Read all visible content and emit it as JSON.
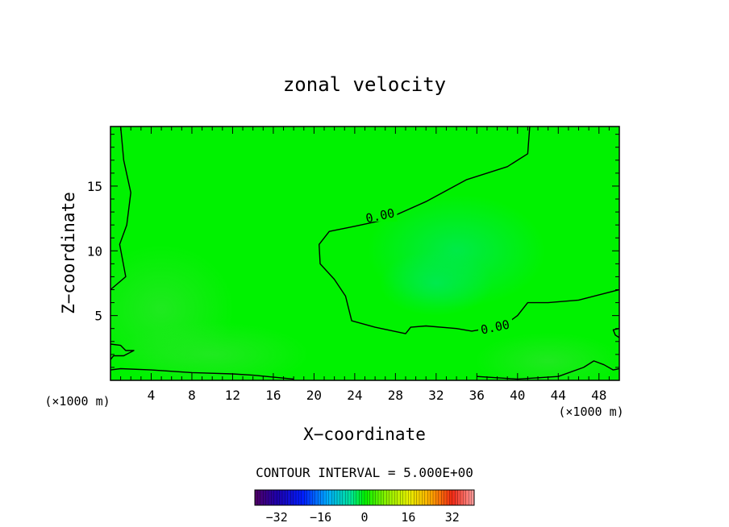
{
  "chart_data": {
    "type": "contour",
    "title": "zonal velocity",
    "xlabel": "X−coordinate",
    "ylabel": "Z−coordinate",
    "x_unit_label": "(×1000 m)",
    "y_unit_label": "(×1000 m)",
    "xlim": [
      0,
      50
    ],
    "ylim": [
      0,
      19.6
    ],
    "x_ticks": [
      4,
      8,
      12,
      16,
      20,
      24,
      28,
      32,
      36,
      40,
      44,
      48
    ],
    "x_tick_labels": [
      "4",
      "8",
      "12",
      "16",
      "20",
      "24",
      "28",
      "32",
      "36",
      "40",
      "44",
      "48"
    ],
    "y_ticks": [
      5,
      10,
      15
    ],
    "y_tick_labels": [
      "5",
      "10",
      "15"
    ],
    "contour_interval_text": "CONTOUR INTERVAL = 5.000E+00",
    "contour_labels": [
      {
        "text": "0.00",
        "x": 26.5,
        "y": 12.7
      },
      {
        "text": "0.00",
        "x": 37.8,
        "y": 4.1
      }
    ],
    "zero_contours": [
      {
        "name": "left-boundary",
        "points": [
          [
            1.0,
            19.6
          ],
          [
            1.3,
            17.0
          ],
          [
            2.0,
            14.5
          ],
          [
            1.6,
            12.0
          ],
          [
            0.9,
            10.5
          ],
          [
            1.5,
            8.0
          ],
          [
            0,
            7.0
          ]
        ]
      },
      {
        "name": "main-tongue",
        "points": [
          [
            41.2,
            19.6
          ],
          [
            41.0,
            17.5
          ],
          [
            39.0,
            16.5
          ],
          [
            35.0,
            15.5
          ],
          [
            31.0,
            13.8
          ],
          [
            27.0,
            12.4
          ],
          [
            24.0,
            11.9
          ],
          [
            21.5,
            11.5
          ],
          [
            20.5,
            10.5
          ],
          [
            20.6,
            9.0
          ],
          [
            22.0,
            7.8
          ],
          [
            23.1,
            6.5
          ],
          [
            23.7,
            4.6
          ],
          [
            26.0,
            4.1
          ],
          [
            29.0,
            3.6
          ],
          [
            29.5,
            4.1
          ],
          [
            31.0,
            4.2
          ],
          [
            34.0,
            4.0
          ],
          [
            35.5,
            3.8
          ],
          [
            37.0,
            4.0
          ],
          [
            38.6,
            4.2
          ],
          [
            40.0,
            5.0
          ],
          [
            41.0,
            6.0
          ],
          [
            43.0,
            6.0
          ],
          [
            46.0,
            6.2
          ],
          [
            48.0,
            6.6
          ],
          [
            50,
            7.0
          ]
        ]
      },
      {
        "name": "lower-left",
        "points": [
          [
            0,
            2.8
          ],
          [
            1.0,
            2.7
          ],
          [
            1.5,
            2.3
          ],
          [
            2.3,
            2.3
          ],
          [
            1.3,
            1.9
          ],
          [
            0.3,
            1.9
          ],
          [
            0,
            1.6
          ]
        ]
      },
      {
        "name": "near-ground-left",
        "points": [
          [
            0,
            0.8
          ],
          [
            1.0,
            0.9
          ],
          [
            4.0,
            0.8
          ],
          [
            8.0,
            0.6
          ],
          [
            12.0,
            0.5
          ],
          [
            14.0,
            0.4
          ],
          [
            18.0,
            0.1
          ]
        ]
      },
      {
        "name": "near-ground-right",
        "points": [
          [
            36.0,
            0.3
          ],
          [
            40.0,
            0.1
          ],
          [
            44.0,
            0.3
          ],
          [
            46.5,
            1.0
          ],
          [
            47.5,
            1.5
          ],
          [
            48.5,
            1.2
          ],
          [
            49.4,
            0.8
          ],
          [
            50,
            0.9
          ]
        ]
      },
      {
        "name": "right-edge-loop",
        "points": [
          [
            50,
            4.0
          ],
          [
            49.4,
            3.9
          ],
          [
            49.6,
            3.5
          ],
          [
            50,
            3.3
          ]
        ]
      }
    ],
    "colorbar": {
      "range": [
        -40,
        40
      ],
      "ticks": [
        -32,
        -16,
        0,
        16,
        32
      ],
      "tick_labels": [
        "−32",
        "−16",
        "0",
        "16",
        "32"
      ]
    },
    "fill_colors": {
      "background": "#00f200",
      "weak_positive": "#1ee61e",
      "weak_negative": "#00e94a",
      "frame": "#000000"
    },
    "grid": false
  }
}
